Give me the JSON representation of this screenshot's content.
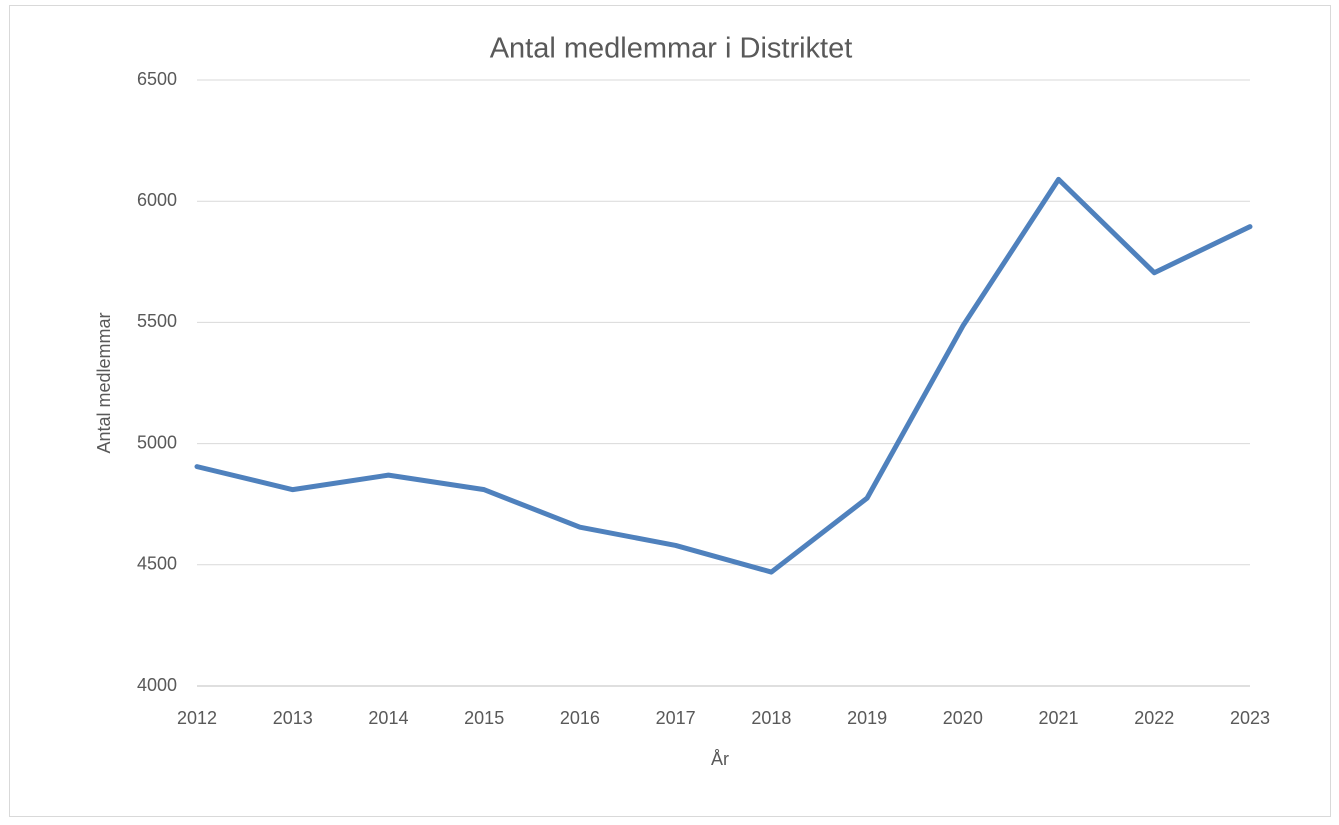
{
  "chart_data": {
    "type": "line",
    "title": "Antal medlemmar i Distriktet",
    "x_label": "År",
    "y_label": "Antal medlemmar",
    "x": [
      2012,
      2013,
      2014,
      2015,
      2016,
      2017,
      2018,
      2019,
      2020,
      2021,
      2022,
      2023
    ],
    "series": [
      {
        "name": "Antal medlemmar",
        "color": "#4f81bd",
        "values": [
          4905,
          4810,
          4870,
          4810,
          4655,
          4580,
          4470,
          4775,
          5485,
          6090,
          5705,
          5895
        ]
      }
    ],
    "xlim": [
      2012,
      2023
    ],
    "xticks": [
      2012,
      2013,
      2014,
      2015,
      2016,
      2017,
      2018,
      2019,
      2020,
      2021,
      2022,
      2023
    ],
    "ylim": [
      4000,
      6500
    ],
    "yticks": [
      4000,
      4500,
      5000,
      5500,
      6000,
      6500
    ],
    "grid": true
  }
}
